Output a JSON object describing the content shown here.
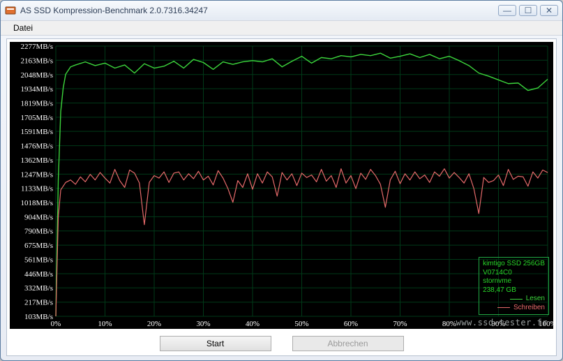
{
  "window": {
    "title": "AS SSD Kompression-Benchmark 2.0.7316.34247",
    "icon_name": "app-icon",
    "controls": {
      "min": "—",
      "max": "☐",
      "close": "✕"
    }
  },
  "menubar": {
    "items": [
      "Datei"
    ]
  },
  "buttons": {
    "start": "Start",
    "abort": "Abbrechen",
    "abort_enabled": false
  },
  "watermark": "www.ssd-tester.fr",
  "legend": {
    "device_lines": "kimtigo SSD 256GB\nV0714C0\nstornvme\n238,47 GB",
    "series": [
      {
        "label": "Lesen",
        "color": "#3cd63c"
      },
      {
        "label": "Schreiben",
        "color": "#e66a6a"
      }
    ],
    "border_color": "#2aa52a"
  },
  "chart": {
    "type": "line",
    "background_color": "#000000",
    "grid_color": "#003a18",
    "axis_label_color": "#ffffff",
    "axis_fontsize": 11,
    "x": {
      "ticks": [
        "0%",
        "10%",
        "20%",
        "30%",
        "40%",
        "50%",
        "60%",
        "70%",
        "80%",
        "90%",
        "100%"
      ],
      "values": [
        0,
        10,
        20,
        30,
        40,
        50,
        60,
        70,
        80,
        90,
        100
      ],
      "lim": [
        0,
        100
      ]
    },
    "y": {
      "ticks": [
        "103MB/s",
        "217MB/s",
        "332MB/s",
        "446MB/s",
        "561MB/s",
        "675MB/s",
        "790MB/s",
        "904MB/s",
        "1018MB/s",
        "1133MB/s",
        "1247MB/s",
        "1362MB/s",
        "1476MB/s",
        "1591MB/s",
        "1705MB/s",
        "1819MB/s",
        "1934MB/s",
        "2048MB/s",
        "2163MB/s",
        "2277MB/s"
      ],
      "values": [
        103,
        217,
        332,
        446,
        561,
        675,
        790,
        904,
        1018,
        1133,
        1247,
        1362,
        1476,
        1591,
        1705,
        1819,
        1934,
        2048,
        2163,
        2277
      ],
      "lim": [
        103,
        2277
      ]
    },
    "series": [
      {
        "name": "Lesen",
        "color": "#3cd63c",
        "line_width": 1.4,
        "x": [
          0,
          0.5,
          1,
          1.5,
          2,
          3,
          4,
          6,
          8,
          10,
          12,
          14,
          16,
          18,
          20,
          22,
          24,
          26,
          28,
          30,
          32,
          34,
          36,
          38,
          40,
          42,
          44,
          46,
          48,
          50,
          52,
          54,
          56,
          58,
          60,
          62,
          64,
          66,
          68,
          70,
          72,
          74,
          76,
          78,
          80,
          82,
          84,
          86,
          88,
          90,
          92,
          94,
          96,
          98,
          100
        ],
        "y": [
          103,
          1200,
          1750,
          1940,
          2050,
          2110,
          2125,
          2150,
          2120,
          2140,
          2100,
          2125,
          2060,
          2135,
          2100,
          2115,
          2155,
          2100,
          2170,
          2145,
          2090,
          2150,
          2130,
          2150,
          2160,
          2150,
          2175,
          2110,
          2155,
          2195,
          2140,
          2185,
          2175,
          2200,
          2190,
          2210,
          2200,
          2220,
          2180,
          2195,
          2215,
          2185,
          2210,
          2175,
          2195,
          2160,
          2120,
          2060,
          2035,
          2005,
          1975,
          1980,
          1920,
          1940,
          2010
        ]
      },
      {
        "name": "Schreiben",
        "color": "#e66a6a",
        "line_width": 1.2,
        "x": [
          0,
          0.5,
          1,
          2,
          3,
          4,
          5,
          6,
          7,
          8,
          9,
          10,
          11,
          12,
          13,
          14,
          15,
          16,
          17,
          18,
          19,
          20,
          21,
          22,
          23,
          24,
          25,
          26,
          27,
          28,
          29,
          30,
          31,
          32,
          33,
          34,
          35,
          36,
          37,
          38,
          39,
          40,
          41,
          42,
          43,
          44,
          45,
          46,
          47,
          48,
          49,
          50,
          51,
          52,
          53,
          54,
          55,
          56,
          57,
          58,
          59,
          60,
          61,
          62,
          63,
          64,
          65,
          66,
          67,
          68,
          69,
          70,
          71,
          72,
          73,
          74,
          75,
          76,
          77,
          78,
          79,
          80,
          81,
          82,
          83,
          84,
          85,
          86,
          87,
          88,
          89,
          90,
          91,
          92,
          93,
          94,
          95,
          96,
          97,
          98,
          99,
          100
        ],
        "y": [
          103,
          900,
          1120,
          1180,
          1200,
          1165,
          1225,
          1185,
          1245,
          1200,
          1260,
          1215,
          1175,
          1285,
          1195,
          1140,
          1280,
          1255,
          1175,
          840,
          1180,
          1235,
          1215,
          1265,
          1180,
          1255,
          1265,
          1200,
          1250,
          1210,
          1270,
          1200,
          1230,
          1160,
          1275,
          1215,
          1130,
          1020,
          1195,
          1140,
          1250,
          1125,
          1250,
          1175,
          1265,
          1225,
          1070,
          1260,
          1200,
          1250,
          1155,
          1255,
          1220,
          1240,
          1185,
          1285,
          1190,
          1235,
          1140,
          1290,
          1175,
          1235,
          1130,
          1255,
          1205,
          1285,
          1235,
          1165,
          980,
          1200,
          1270,
          1170,
          1250,
          1200,
          1265,
          1210,
          1240,
          1180,
          1265,
          1230,
          1290,
          1215,
          1260,
          1220,
          1175,
          1250,
          1130,
          930,
          1220,
          1180,
          1195,
          1240,
          1155,
          1285,
          1205,
          1230,
          1225,
          1150,
          1265,
          1215,
          1280,
          1260
        ]
      }
    ]
  }
}
